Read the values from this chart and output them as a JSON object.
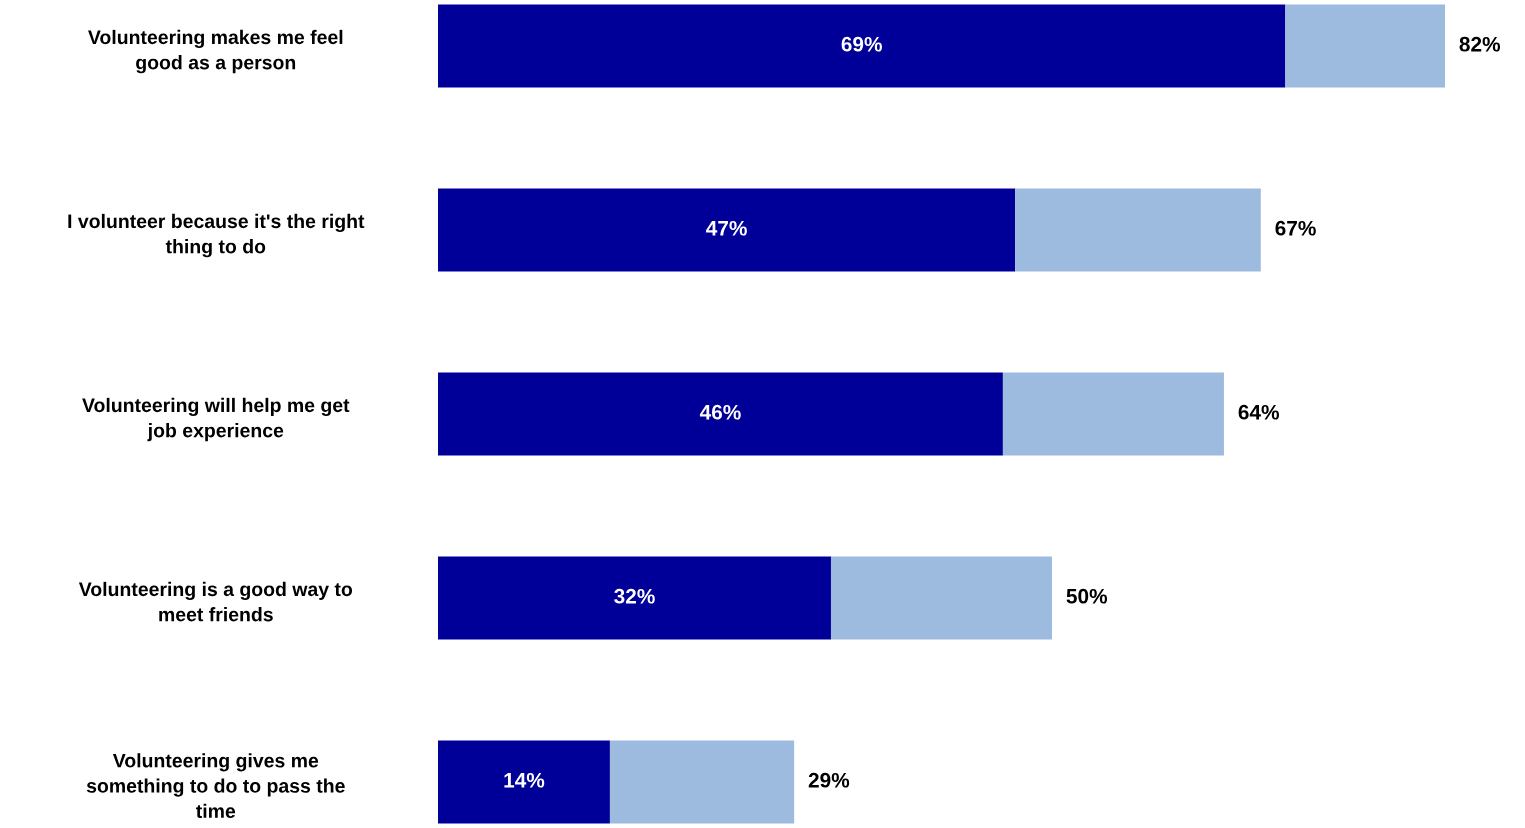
{
  "chart_data": {
    "type": "bar",
    "orientation": "horizontal",
    "stacked": true,
    "categories": [
      "Volunteering makes me feel\ngood as a person",
      "I volunteer because it's the right\nthing to do",
      "Volunteering will help me get\njob experience",
      "Volunteering is a good way to\nmeet friends",
      "Volunteering gives me\nsomething to do to pass the\ntime"
    ],
    "series": [
      {
        "color": "#000099",
        "values": [
          69,
          47,
          46,
          32,
          14
        ],
        "value_labels": [
          "69%",
          "47%",
          "46%",
          "32%",
          "14%"
        ]
      },
      {
        "color": "#9dbadf",
        "values": [
          13,
          20,
          18,
          18,
          15
        ]
      }
    ],
    "totals": [
      "82%",
      "67%",
      "64%",
      "50%",
      "29%"
    ],
    "grid": false,
    "legend": false
  }
}
